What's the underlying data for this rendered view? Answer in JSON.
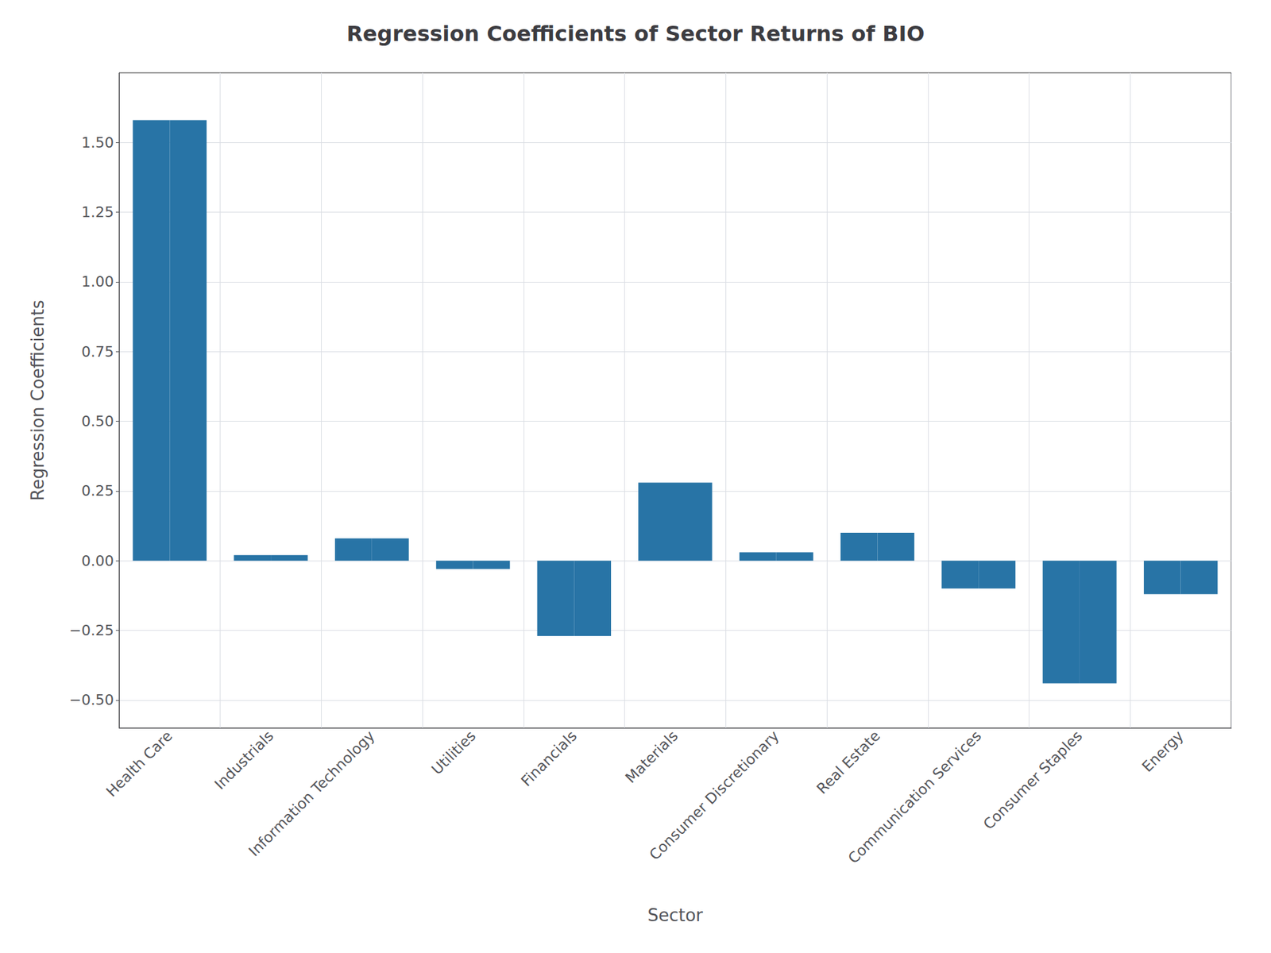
{
  "chart_data": {
    "type": "bar",
    "title": "Regression Coefficients of Sector Returns of BIO",
    "xlabel": "Sector",
    "ylabel": "Regression Coefficients",
    "categories": [
      "Health Care",
      "Industrials",
      "Information Technology",
      "Utilities",
      "Financials",
      "Materials",
      "Consumer Discretionary",
      "Real Estate",
      "Communication Services",
      "Consumer Staples",
      "Energy"
    ],
    "series": [
      {
        "color": "#2874a6",
        "values": [
          1.58,
          0.02,
          0.08,
          -0.03,
          -0.27,
          0.28,
          0.03,
          0.1,
          -0.1,
          -0.44,
          -0.12
        ]
      },
      {
        "color": "#2874a6",
        "values": [
          1.58,
          0.02,
          0.08,
          -0.03,
          -0.27,
          0.28,
          0.03,
          0.1,
          -0.1,
          -0.44,
          -0.12
        ]
      }
    ],
    "ylim": [
      -0.6,
      1.75
    ],
    "yticks": [
      {
        "value": -0.5,
        "label": "−0.50"
      },
      {
        "value": -0.25,
        "label": "−0.25"
      },
      {
        "value": 0,
        "label": "0.00"
      },
      {
        "value": 0.25,
        "label": "0.25"
      },
      {
        "value": 0.5,
        "label": "0.50"
      },
      {
        "value": 0.75,
        "label": "0.75"
      },
      {
        "value": 1,
        "label": "1.00"
      },
      {
        "value": 1.25,
        "label": "1.25"
      },
      {
        "value": 1.5,
        "label": "1.50"
      }
    ],
    "grid": true
  }
}
